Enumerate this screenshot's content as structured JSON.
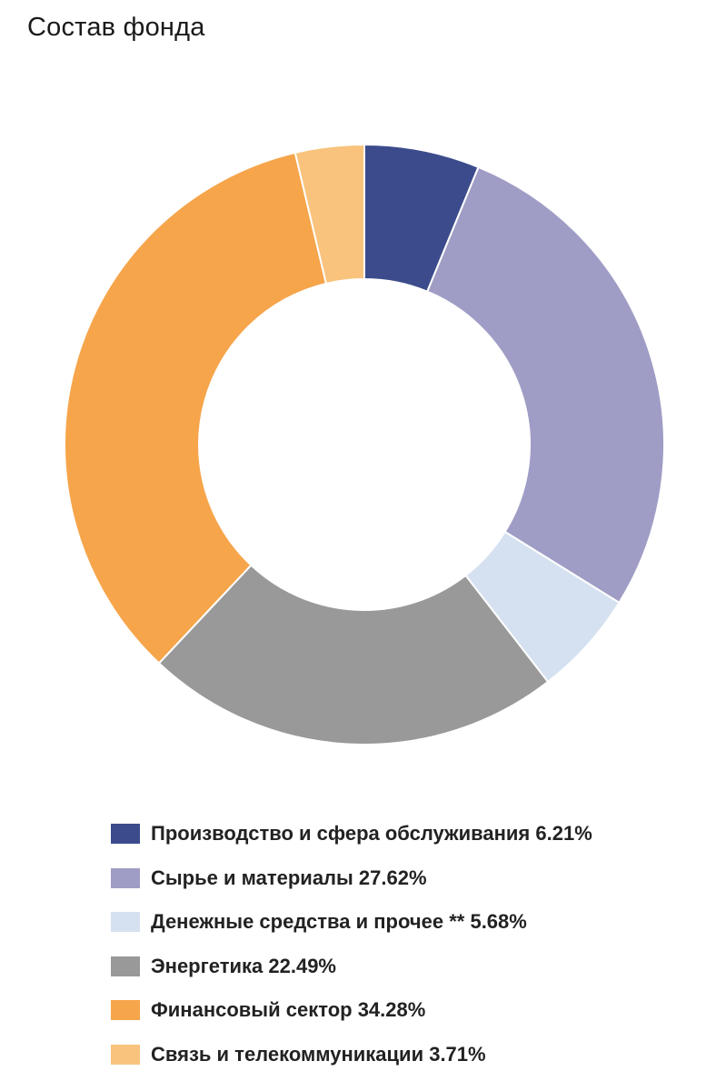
{
  "title": "Состав фонда",
  "chart_data": {
    "type": "pie",
    "variant": "donut",
    "title": "Состав фонда",
    "legend_position": "bottom",
    "slices": [
      {
        "label": "Производство и сфера обслуживания",
        "value": 6.21,
        "value_label": "6.21%",
        "legend_text": "Производство и сфера обслуживания 6.21%",
        "color": "#3c4b8b"
      },
      {
        "label": "Сырье и материалы",
        "value": 27.62,
        "value_label": "27.62%",
        "legend_text": "Сырье и материалы 27.62%",
        "color": "#9f9dc5"
      },
      {
        "label": "Денежные средства и прочее **",
        "value": 5.68,
        "value_label": "5.68%",
        "legend_text": "Денежные средства и прочее ** 5.68%",
        "color": "#d5e1f0"
      },
      {
        "label": "Энергетика",
        "value": 22.49,
        "value_label": "22.49%",
        "legend_text": "Энергетика 22.49%",
        "color": "#999999"
      },
      {
        "label": "Финансовый сектор",
        "value": 34.28,
        "value_label": "34.28%",
        "legend_text": "Финансовый сектор 34.28%",
        "color": "#f6a54b"
      },
      {
        "label": "Связь и телекоммуникации",
        "value": 3.71,
        "value_label": "3.71%",
        "legend_text": "Связь и телекоммуникации 3.71%",
        "color": "#f9c37d"
      }
    ]
  }
}
